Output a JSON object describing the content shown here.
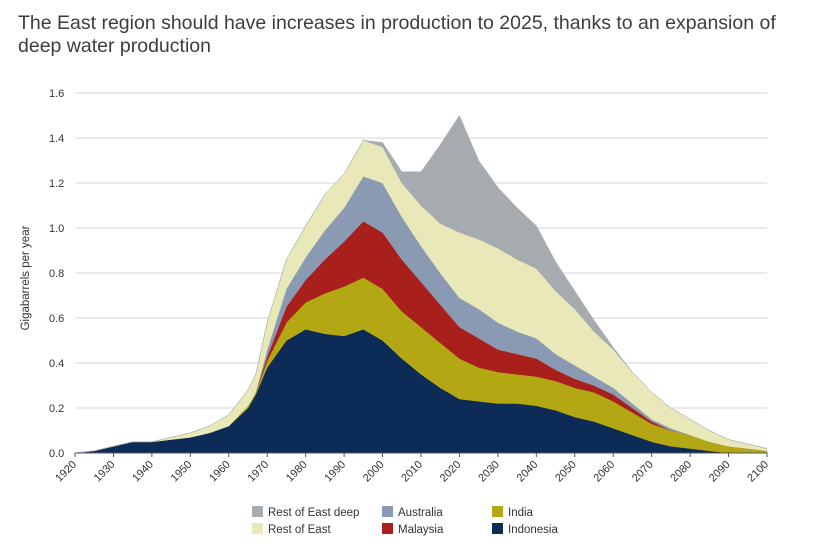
{
  "page_title": "The East region should have increases in production to 2025, thanks to an expansion of deep water production",
  "chart_data": {
    "type": "area",
    "stacked": true,
    "title": "",
    "xlabel": "",
    "ylabel": "Gigabarrels per year",
    "xlim": [
      1920,
      2100
    ],
    "ylim": [
      0,
      1.6
    ],
    "y_ticks": [
      "0.0",
      "0.2",
      "0.4",
      "0.6",
      "0.8",
      "1.0",
      "1.2",
      "1.4",
      "1.6"
    ],
    "x_ticks": [
      "1920",
      "1930",
      "1940",
      "1950",
      "1960",
      "1970",
      "1980",
      "1990",
      "2000",
      "2010",
      "2020",
      "2030",
      "2040",
      "2050",
      "2060",
      "2070",
      "2080",
      "2090",
      "2100"
    ],
    "grid": "horizontal",
    "legend_position": "bottom",
    "legend_order": [
      "Rest of East deep",
      "Australia",
      "India",
      "Rest of East",
      "Malaysia",
      "Indonesia"
    ],
    "x": [
      1920,
      1925,
      1930,
      1935,
      1940,
      1945,
      1950,
      1955,
      1960,
      1965,
      1967,
      1970,
      1975,
      1980,
      1985,
      1990,
      1995,
      2000,
      2005,
      2010,
      2015,
      2020,
      2025,
      2030,
      2035,
      2040,
      2045,
      2050,
      2055,
      2060,
      2065,
      2070,
      2075,
      2080,
      2085,
      2090,
      2095,
      2100
    ],
    "series": [
      {
        "name": "Indonesia",
        "color": "#0d2b57",
        "values": [
          0,
          0.01,
          0.03,
          0.05,
          0.05,
          0.06,
          0.07,
          0.09,
          0.12,
          0.2,
          0.26,
          0.38,
          0.5,
          0.55,
          0.53,
          0.52,
          0.55,
          0.5,
          0.42,
          0.35,
          0.29,
          0.24,
          0.23,
          0.22,
          0.22,
          0.21,
          0.19,
          0.16,
          0.14,
          0.11,
          0.08,
          0.05,
          0.03,
          0.02,
          0.01,
          0,
          0,
          0
        ]
      },
      {
        "name": "India",
        "color": "#b3a813",
        "values": [
          0,
          0,
          0,
          0,
          0,
          0,
          0,
          0,
          0,
          0.01,
          0.01,
          0.03,
          0.08,
          0.12,
          0.18,
          0.22,
          0.23,
          0.23,
          0.21,
          0.21,
          0.2,
          0.18,
          0.15,
          0.14,
          0.13,
          0.13,
          0.13,
          0.13,
          0.13,
          0.12,
          0.1,
          0.08,
          0.07,
          0.06,
          0.04,
          0.03,
          0.02,
          0.01
        ]
      },
      {
        "name": "Malaysia",
        "color": "#a81f1c",
        "values": [
          0,
          0,
          0,
          0,
          0,
          0,
          0,
          0,
          0,
          0,
          0,
          0.02,
          0.07,
          0.1,
          0.15,
          0.2,
          0.25,
          0.25,
          0.23,
          0.2,
          0.17,
          0.14,
          0.13,
          0.1,
          0.09,
          0.08,
          0.05,
          0.04,
          0.03,
          0.03,
          0.02,
          0.01,
          0,
          0,
          0,
          0,
          0,
          0
        ]
      },
      {
        "name": "Australia",
        "color": "#8b9ab3",
        "values": [
          0,
          0,
          0,
          0,
          0,
          0,
          0,
          0,
          0,
          0,
          0,
          0.03,
          0.08,
          0.1,
          0.13,
          0.15,
          0.2,
          0.22,
          0.19,
          0.16,
          0.14,
          0.13,
          0.13,
          0.12,
          0.1,
          0.09,
          0.07,
          0.06,
          0.04,
          0.03,
          0.02,
          0.01,
          0.01,
          0,
          0,
          0,
          0,
          0
        ]
      },
      {
        "name": "Rest of East",
        "color": "#e8e8b8",
        "values": [
          0,
          0,
          0,
          0,
          0,
          0.01,
          0.02,
          0.03,
          0.05,
          0.07,
          0.08,
          0.12,
          0.13,
          0.14,
          0.16,
          0.15,
          0.16,
          0.16,
          0.15,
          0.18,
          0.22,
          0.29,
          0.31,
          0.33,
          0.32,
          0.31,
          0.28,
          0.25,
          0.2,
          0.17,
          0.14,
          0.12,
          0.09,
          0.07,
          0.05,
          0.03,
          0.02,
          0.01
        ]
      },
      {
        "name": "Rest of East deep",
        "color": "#a6abb0",
        "values": [
          0,
          0,
          0,
          0,
          0,
          0,
          0,
          0,
          0,
          0,
          0,
          0,
          0,
          0,
          0,
          0,
          0,
          0.02,
          0.05,
          0.15,
          0.35,
          0.52,
          0.35,
          0.27,
          0.23,
          0.19,
          0.13,
          0.08,
          0.05,
          0.01,
          0,
          0,
          0,
          0,
          0,
          0,
          0,
          0
        ]
      }
    ]
  }
}
